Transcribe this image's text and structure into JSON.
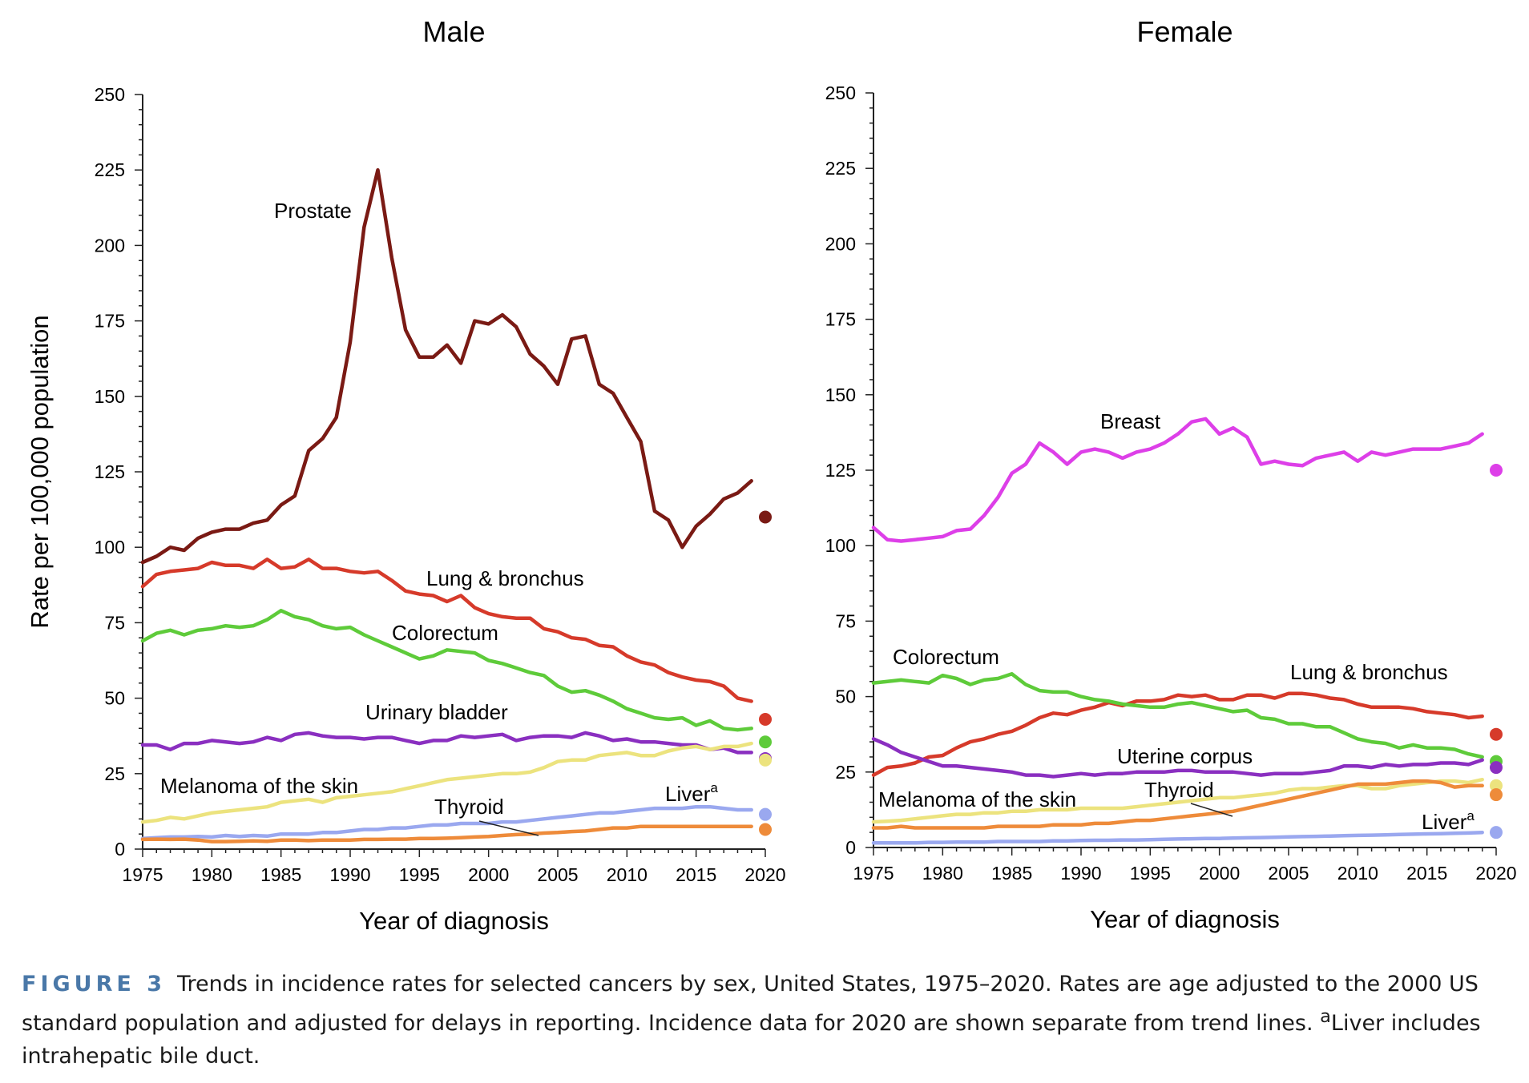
{
  "chart_data": [
    {
      "type": "line",
      "title": "Male",
      "xlabel": "Year of diagnosis",
      "ylabel": "Rate per 100,000 population",
      "xlim": [
        1975,
        2020
      ],
      "ylim": [
        0,
        250
      ],
      "x_ticks": [
        "1975",
        "1980",
        "1985",
        "1990",
        "1995",
        "2000",
        "2005",
        "2010",
        "2015",
        "2020"
      ],
      "y_ticks": [
        "0",
        "25",
        "50",
        "75",
        "100",
        "125",
        "150",
        "175",
        "200",
        "225",
        "250"
      ],
      "grid": false,
      "series": [
        {
          "name": "Prostate",
          "color": "#7a1a14",
          "x_start": 1975,
          "values": [
            95,
            97,
            100,
            99,
            103,
            105,
            106,
            106,
            108,
            109,
            114,
            117,
            132,
            136,
            143,
            168,
            206,
            225,
            196,
            172,
            163,
            163,
            167,
            161,
            175,
            174,
            177,
            173,
            164,
            160,
            154,
            169,
            170,
            154,
            151,
            143,
            135,
            112,
            109,
            100,
            107,
            111,
            116,
            118,
            122
          ],
          "point_2020": 110
        },
        {
          "name": "Lung & bronchus",
          "color": "#d63a2a",
          "x_start": 1975,
          "values": [
            87,
            91,
            92,
            92.5,
            93,
            95,
            94,
            94,
            93,
            96,
            93,
            93.5,
            96,
            93,
            93,
            92,
            91.5,
            92,
            89,
            85.5,
            84.5,
            84,
            82,
            84,
            80,
            78,
            77,
            76.5,
            76.5,
            73,
            72,
            70,
            69.5,
            67.5,
            67,
            64,
            62,
            61,
            58.5,
            57,
            56,
            55.5,
            54,
            50,
            49
          ],
          "point_2020": 43
        },
        {
          "name": "Colorectum",
          "color": "#5ecb3a",
          "x_start": 1975,
          "values": [
            69,
            71.5,
            72.5,
            71,
            72.5,
            73,
            74,
            73.5,
            74,
            76,
            79,
            77,
            76,
            74,
            73,
            73.5,
            71,
            69,
            67,
            65,
            63,
            64,
            66,
            65.5,
            65,
            62.5,
            61.5,
            60,
            58.5,
            57.5,
            54,
            52,
            52.5,
            51,
            49,
            46.5,
            45,
            43.5,
            43,
            43.5,
            41,
            42.5,
            40,
            39.5,
            40
          ],
          "point_2020": 35.5
        },
        {
          "name": "Urinary bladder",
          "color": "#8a2fc0",
          "x_start": 1975,
          "values": [
            34.5,
            34.5,
            33,
            35,
            35,
            36,
            35.5,
            35,
            35.5,
            37,
            36,
            38,
            38.5,
            37.5,
            37,
            37,
            36.5,
            37,
            37,
            36,
            35,
            36,
            36,
            37.5,
            37,
            37.5,
            38,
            36,
            37,
            37.5,
            37.5,
            37,
            38.5,
            37.5,
            36,
            36.5,
            35.5,
            35.5,
            35,
            34.5,
            34.5,
            33,
            33.5,
            32,
            32
          ],
          "point_2020": 30
        },
        {
          "name": "Melanoma of the skin",
          "color": "#ece37e",
          "x_start": 1975,
          "values": [
            9,
            9.5,
            10.5,
            10,
            11,
            12,
            12.5,
            13,
            13.5,
            14,
            15.5,
            16,
            16.5,
            15.5,
            17,
            17.5,
            18,
            18.5,
            19,
            20,
            21,
            22,
            23,
            23.5,
            24,
            24.5,
            25,
            25,
            25.5,
            27,
            29,
            29.5,
            29.5,
            31,
            31.5,
            32,
            31,
            31,
            32.5,
            33.5,
            34,
            33,
            34,
            34,
            35
          ],
          "point_2020": 29.5
        },
        {
          "name": "Liver",
          "color": "#9aa8ef",
          "x_start": 1975,
          "values": [
            3.5,
            3.8,
            4,
            4,
            4.2,
            4,
            4.5,
            4.2,
            4.5,
            4.3,
            5,
            5,
            5,
            5.5,
            5.5,
            6,
            6.5,
            6.5,
            7,
            7,
            7.5,
            8,
            8,
            8.5,
            8.5,
            8.5,
            9,
            9,
            9.5,
            10,
            10.5,
            11,
            11.5,
            12,
            12,
            12.5,
            13,
            13.5,
            13.5,
            13.5,
            14,
            14,
            13.5,
            13,
            13
          ],
          "point_2020": 11.5
        },
        {
          "name": "Thyroid",
          "color": "#ee8b3a",
          "x_start": 1975,
          "values": [
            3.2,
            3.3,
            3.2,
            3.3,
            3,
            2.5,
            2.5,
            2.6,
            2.7,
            2.6,
            3,
            3,
            2.8,
            3,
            3,
            3,
            3.2,
            3.2,
            3.3,
            3.3,
            3.5,
            3.5,
            3.6,
            3.8,
            4,
            4.2,
            4.5,
            4.8,
            5,
            5.3,
            5.5,
            5.8,
            6,
            6.5,
            7,
            7,
            7.5,
            7.5,
            7.5,
            7.5,
            7.5,
            7.5,
            7.5,
            7.5,
            7.5
          ],
          "point_2020": 6.5
        }
      ],
      "annotations": [
        {
          "text": "Prostate",
          "series": "Prostate"
        },
        {
          "text": "Lung & bronchus",
          "series": "Lung & bronchus"
        },
        {
          "text": "Colorectum",
          "series": "Colorectum"
        },
        {
          "text": "Urinary bladder",
          "series": "Urinary bladder"
        },
        {
          "text": "Melanoma of the skin",
          "series": "Melanoma of the skin"
        },
        {
          "text": "Liver",
          "superscript": "a",
          "series": "Liver"
        },
        {
          "text": "Thyroid",
          "series": "Thyroid"
        }
      ]
    },
    {
      "type": "line",
      "title": "Female",
      "xlabel": "Year of diagnosis",
      "ylabel": "",
      "xlim": [
        1975,
        2020
      ],
      "ylim": [
        0,
        250
      ],
      "x_ticks": [
        "1975",
        "1980",
        "1985",
        "1990",
        "1995",
        "2000",
        "2005",
        "2010",
        "2015",
        "2020"
      ],
      "y_ticks": [
        "0",
        "25",
        "50",
        "75",
        "100",
        "125",
        "150",
        "175",
        "200",
        "225",
        "250"
      ],
      "grid": false,
      "series": [
        {
          "name": "Breast",
          "color": "#dd3fe8",
          "x_start": 1975,
          "values": [
            106,
            102,
            101.5,
            102,
            102.5,
            103,
            105,
            105.5,
            110,
            116,
            124,
            127,
            134,
            131,
            127,
            131,
            132,
            131,
            129,
            131,
            132,
            134,
            137,
            141,
            142,
            137,
            139,
            136,
            127,
            128,
            127,
            126.5,
            129,
            130,
            131,
            128,
            131,
            130,
            131,
            132,
            132,
            132,
            133,
            134,
            137
          ],
          "point_2020": 125
        },
        {
          "name": "Lung & bronchus",
          "color": "#d63a2a",
          "x_start": 1975,
          "values": [
            24,
            26.5,
            27,
            28,
            30,
            30.5,
            33,
            35,
            36,
            37.5,
            38.5,
            40.5,
            43,
            44.5,
            44,
            45.5,
            46.5,
            48,
            47,
            48.5,
            48.5,
            49,
            50.5,
            50,
            50.5,
            49,
            49,
            50.5,
            50.5,
            49.5,
            51,
            51,
            50.5,
            49.5,
            49,
            47.5,
            46.5,
            46.5,
            46.5,
            46,
            45,
            44.5,
            44,
            43,
            43.5
          ],
          "point_2020": 37.5
        },
        {
          "name": "Colorectum",
          "color": "#5ecb3a",
          "x_start": 1975,
          "values": [
            54.5,
            55,
            55.5,
            55,
            54.5,
            57,
            56,
            54,
            55.5,
            56,
            57.5,
            54,
            52,
            51.5,
            51.5,
            50,
            49,
            48.5,
            47.5,
            47,
            46.5,
            46.5,
            47.5,
            48,
            47,
            46,
            45,
            45.5,
            43,
            42.5,
            41,
            41,
            40,
            40,
            38,
            36,
            35,
            34.5,
            33,
            34,
            33,
            33,
            32.5,
            31,
            30
          ],
          "point_2020": 28.5
        },
        {
          "name": "Uterine corpus",
          "color": "#8a2fc0",
          "x_start": 1975,
          "values": [
            36,
            34,
            31.5,
            30,
            28.5,
            27,
            27,
            26.5,
            26,
            25.5,
            25,
            24,
            24,
            23.5,
            24,
            24.5,
            24,
            24.5,
            24.5,
            25,
            25,
            25,
            25.5,
            25.5,
            25,
            25,
            25,
            24.5,
            24,
            24.5,
            24.5,
            24.5,
            25,
            25.5,
            27,
            27,
            26.5,
            27.5,
            27,
            27.5,
            27.5,
            28,
            28,
            27.5,
            29
          ],
          "point_2020": 26.5
        },
        {
          "name": "Melanoma of the skin",
          "color": "#ece37e",
          "x_start": 1975,
          "values": [
            8.5,
            8.7,
            9,
            9.5,
            10,
            10.5,
            11,
            11,
            11.5,
            11.5,
            12,
            12,
            12.5,
            12.5,
            12.5,
            13,
            13,
            13,
            13,
            13.5,
            14,
            14.5,
            15,
            15.5,
            16,
            16.5,
            16.5,
            17,
            17.5,
            18,
            19,
            19.5,
            19.5,
            20,
            20.5,
            20.5,
            19.5,
            19.5,
            20.5,
            21,
            21.5,
            22,
            22,
            21.5,
            22.5
          ],
          "point_2020": 20.5
        },
        {
          "name": "Thyroid",
          "color": "#ee8b3a",
          "x_start": 1975,
          "values": [
            6.5,
            6.5,
            7,
            6.5,
            6.5,
            6.5,
            6.5,
            6.5,
            6.5,
            7,
            7,
            7,
            7,
            7.5,
            7.5,
            7.5,
            8,
            8,
            8.5,
            9,
            9,
            9.5,
            10,
            10.5,
            11,
            11.5,
            12,
            13,
            14,
            15,
            16,
            17,
            18,
            19,
            20,
            21,
            21,
            21,
            21.5,
            22,
            22,
            21.5,
            20,
            20.5,
            20.5
          ],
          "point_2020": 17.5
        },
        {
          "name": "Liver",
          "color": "#9aa8ef",
          "x_start": 1975,
          "values": [
            1.5,
            1.5,
            1.5,
            1.5,
            1.7,
            1.7,
            1.8,
            1.8,
            1.8,
            2,
            2,
            2,
            2,
            2.2,
            2.2,
            2.3,
            2.4,
            2.4,
            2.5,
            2.5,
            2.6,
            2.7,
            2.8,
            2.9,
            3,
            3,
            3.1,
            3.2,
            3.3,
            3.4,
            3.5,
            3.6,
            3.7,
            3.8,
            3.9,
            4,
            4.1,
            4.2,
            4.3,
            4.4,
            4.5,
            4.6,
            4.7,
            4.8,
            5
          ],
          "point_2020": 5
        }
      ],
      "annotations": [
        {
          "text": "Breast",
          "series": "Breast"
        },
        {
          "text": "Colorectum",
          "series": "Colorectum"
        },
        {
          "text": "Lung & bronchus",
          "series": "Lung & bronchus"
        },
        {
          "text": "Uterine corpus",
          "series": "Uterine corpus"
        },
        {
          "text": "Melanoma of the skin",
          "series": "Melanoma of the skin"
        },
        {
          "text": "Thyroid",
          "series": "Thyroid"
        },
        {
          "text": "Liver",
          "superscript": "a",
          "series": "Liver"
        }
      ]
    }
  ],
  "caption": {
    "figure_label": "FIGURE 3",
    "text_before_superscript": "Trends in incidence rates for selected cancers by sex, United States, 1975–2020. Rates are age adjusted to the 2000 US standard population and adjusted for delays in reporting. Incidence data for 2020 are shown separate from trend lines. ",
    "superscript": "a",
    "text_after_superscript": "Liver includes intrahepatic bile duct."
  }
}
